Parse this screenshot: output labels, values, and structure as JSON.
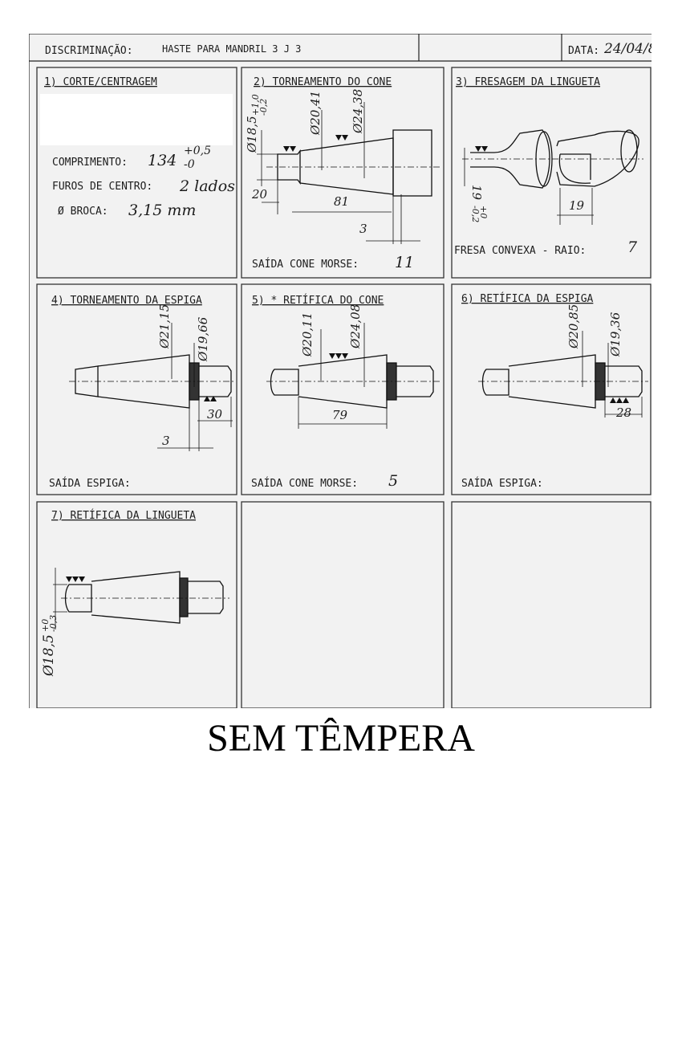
{
  "header": {
    "discriminacao_label": "DISCRIMINAÇÃO:",
    "discriminacao_value": "HASTE PARA MANDRIL  3 J 3",
    "data_label": "DATA:",
    "data_value": "24/04/8"
  },
  "panels": [
    {
      "title": "1) CORTE/CENTRAGEM",
      "lines": [
        {
          "label": "COMPRIMENTO:",
          "value": "134",
          "tol_upper": "+0,5",
          "tol_lower": "-0"
        },
        {
          "label": "FUROS DE CENTRO:",
          "value": "2 lados"
        },
        {
          "label": "Ø BROCA:",
          "value": "3,15 mm"
        }
      ]
    },
    {
      "title": "2) TORNEAMENTO DO CONE",
      "dims": [
        "Ø18,5",
        "+1,0",
        "-0,2",
        "Ø20,41",
        "Ø24,38",
        "20",
        "81",
        "3"
      ],
      "footer_label": "SAÍDA CONE MORSE:",
      "footer_value": "11"
    },
    {
      "title": "3) FRESAGEM DA LINGUETA",
      "dims": [
        "19",
        "+0",
        "-0,2",
        "19"
      ],
      "footer_label": "FRESA CONVEXA - RAIO:",
      "footer_value": "7"
    },
    {
      "title": "4) TORNEAMENTO DA ESPIGA",
      "dims": [
        "Ø21,15",
        "Ø19,66",
        "30",
        "3"
      ],
      "footer_label": "SAÍDA ESPIGA:",
      "footer_value": ""
    },
    {
      "title": "5) * RETÍFICA DO CONE",
      "dims": [
        "Ø20,11",
        "Ø24,08",
        "79"
      ],
      "footer_label": "SAÍDA CONE MORSE:",
      "footer_value": "5"
    },
    {
      "title": "6) RETÍFICA DA ESPIGA",
      "dims": [
        "Ø20,85",
        "Ø19,36",
        "28"
      ],
      "footer_label": "SAÍDA ESPIGA:",
      "footer_value": ""
    },
    {
      "title": "7) RETÍFICA DA LINGUETA",
      "dims": [
        "Ø18,5",
        "+0",
        "-0,3"
      ]
    }
  ],
  "footer_text": "SEM TÊMPERA"
}
